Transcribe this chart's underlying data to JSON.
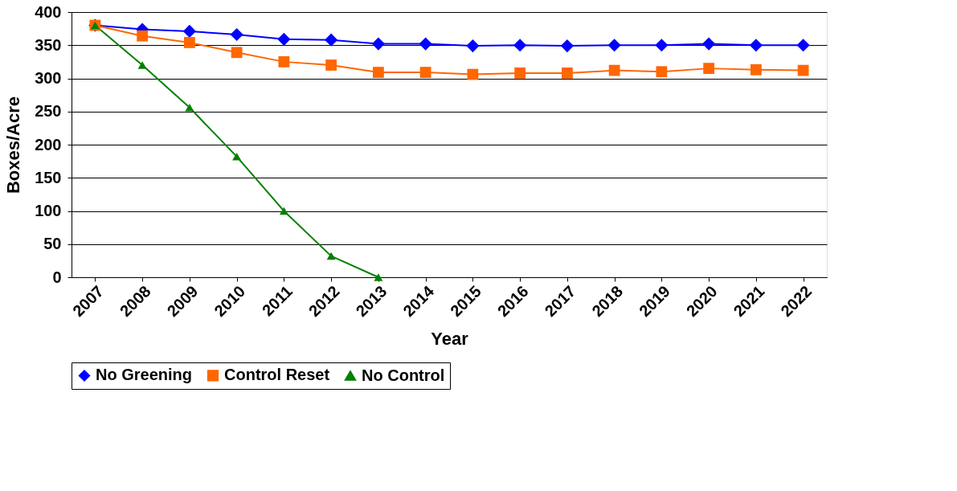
{
  "chart_data": {
    "type": "line",
    "xlabel": "Year",
    "ylabel": "Boxes/Acre",
    "categories": [
      "2007",
      "2008",
      "2009",
      "2010",
      "2011",
      "2012",
      "2013",
      "2014",
      "2015",
      "2016",
      "2017",
      "2018",
      "2019",
      "2020",
      "2021",
      "2022"
    ],
    "ylim": [
      0,
      400
    ],
    "yticks": [
      0,
      50,
      100,
      150,
      200,
      250,
      300,
      350,
      400
    ],
    "grid": "y",
    "legend": "bottom",
    "line_style": "solid",
    "series": [
      {
        "name": "No Greening",
        "color": "#0000ff",
        "marker": "diamond",
        "values": [
          380,
          374,
          371,
          366,
          359,
          358,
          352,
          352,
          349,
          350,
          349,
          350,
          350,
          352,
          350,
          350
        ]
      },
      {
        "name": "Control Reset",
        "color": "#ff6600",
        "marker": "square",
        "values": [
          380,
          364,
          354,
          339,
          325,
          320,
          309,
          309,
          306,
          308,
          308,
          312,
          310,
          315,
          313,
          312
        ]
      },
      {
        "name": "No Control",
        "color": "#008000",
        "marker": "triangle",
        "values": [
          380,
          320,
          256,
          182,
          100,
          32,
          0,
          null,
          null,
          null,
          null,
          null,
          null,
          null,
          null,
          null
        ]
      }
    ]
  }
}
